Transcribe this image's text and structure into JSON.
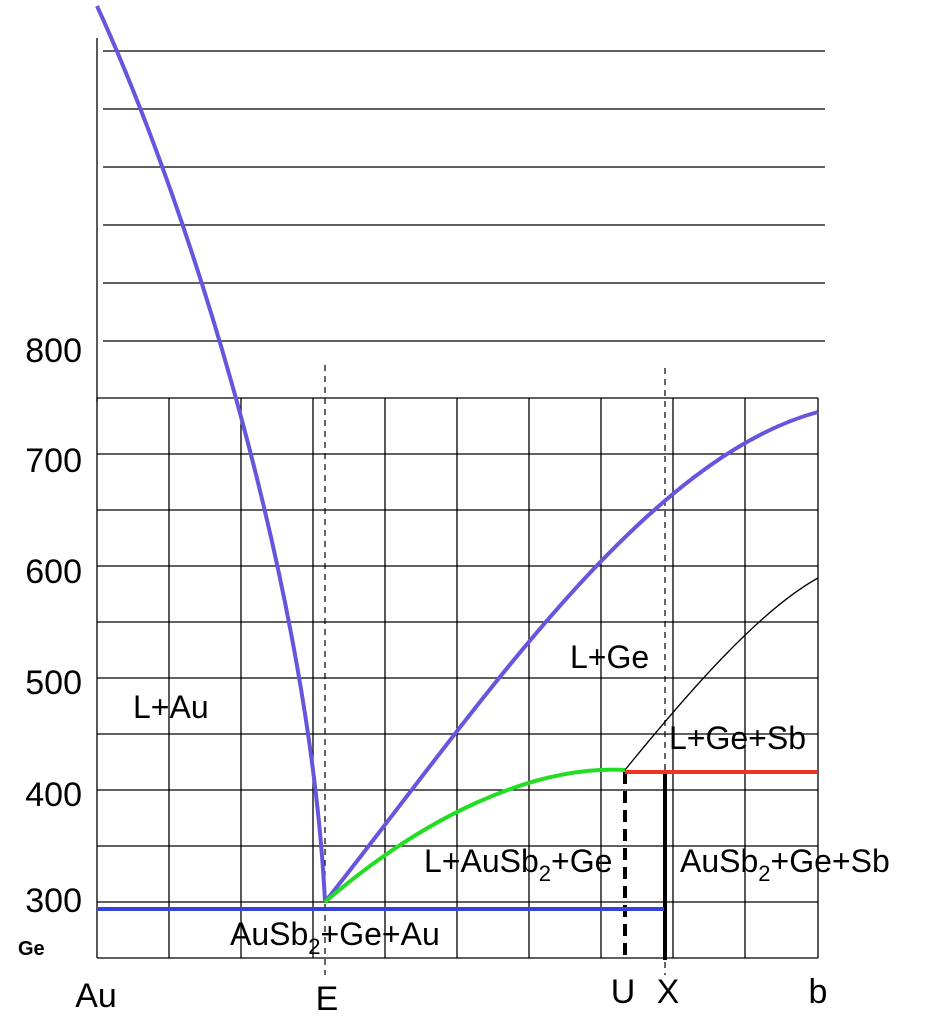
{
  "chart_data": {
    "type": "line",
    "title": "",
    "xlabel": "",
    "ylabel": "",
    "ylim": [
      245,
      1100
    ],
    "y_ticks": [
      "800",
      "700",
      "600",
      "500",
      "400",
      "300"
    ],
    "x_ticks": {
      "left": "Au",
      "eutectic": "E",
      "peritectic": "U",
      "composition": "X",
      "right": "b"
    },
    "corner_label": "Ge",
    "region_labels": {
      "l_au": "L+Au",
      "l_ge": "L+Ge",
      "l_ge_sb": "L+Ge+Sb",
      "l_ausb2_ge": {
        "main": "L+AuSb",
        "sub": "2",
        "tail": "+Ge"
      },
      "ausb2_ge_sb": {
        "main": "AuSb",
        "sub": "2",
        "tail": "+Ge+Sb"
      },
      "ausb2_ge_au": {
        "main": "AuSb",
        "sub": "2",
        "tail": "+Ge+Au"
      }
    },
    "series_colors": {
      "liquidus": "#6655dd",
      "eutectic_isotherm": "#3344dd",
      "ternary_valley": "#22dd22",
      "peritectic_isotherm": "#ee3322",
      "sb_liquidus": "#000000"
    },
    "grid": true
  }
}
